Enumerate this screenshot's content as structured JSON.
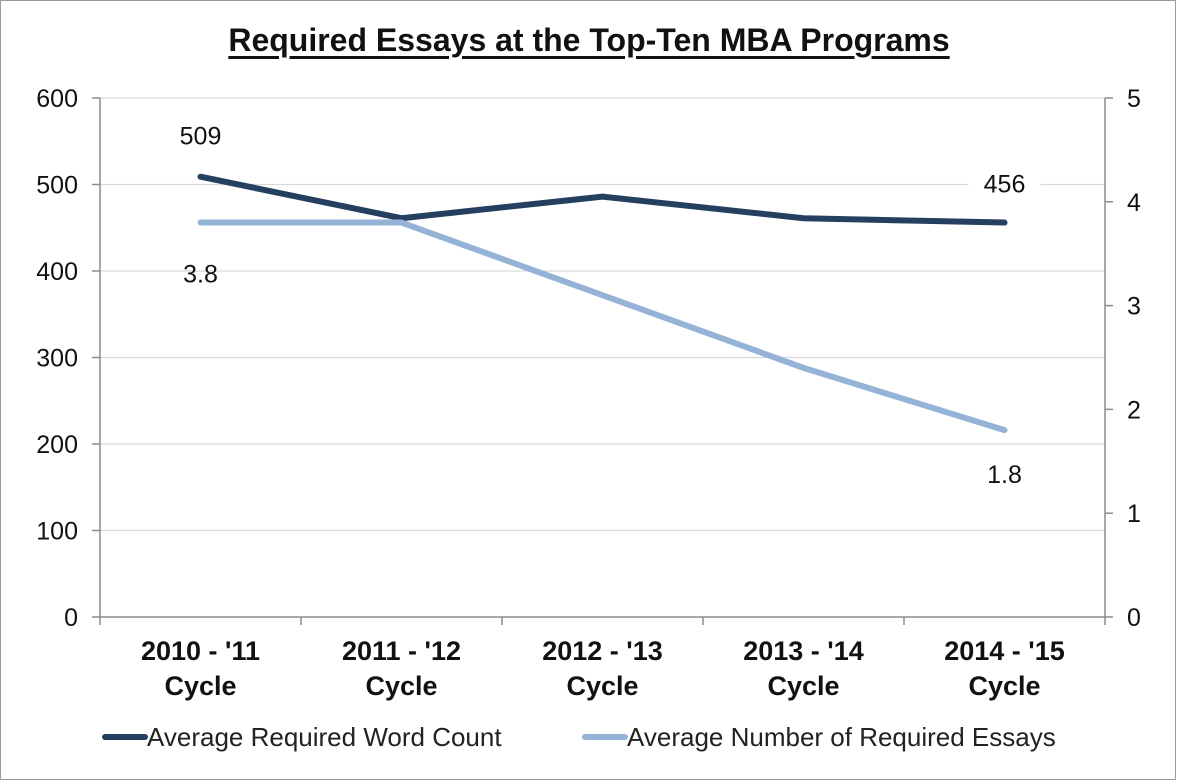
{
  "chart_data": {
    "type": "line",
    "title": "Required Essays at the Top-Ten MBA Programs",
    "categories": [
      [
        "2010 - '11",
        "Cycle"
      ],
      [
        "2011 - '12",
        "Cycle"
      ],
      [
        "2012 - '13",
        "Cycle"
      ],
      [
        "2013 - '14",
        "Cycle"
      ],
      [
        "2014 - '15",
        "Cycle"
      ]
    ],
    "y_left": {
      "min": 0,
      "max": 600,
      "ticks": [
        "0",
        "100",
        "200",
        "300",
        "400",
        "500",
        "600"
      ]
    },
    "y_right": {
      "min": 0,
      "max": 5,
      "ticks": [
        "0",
        "1",
        "2",
        "3",
        "4",
        "5"
      ]
    },
    "grid": true,
    "legend_position": "bottom",
    "series": [
      {
        "name": "Average Required Word Count",
        "axis": "left",
        "color": "#243f60",
        "values": [
          509,
          461,
          486,
          461,
          456
        ],
        "labels": [
          {
            "index": 0,
            "text": "509"
          },
          {
            "index": 4,
            "text": "456"
          }
        ]
      },
      {
        "name": "Average Number of Required Essays",
        "axis": "right",
        "color": "#95b3d7",
        "values": [
          3.8,
          3.8,
          3.1,
          2.4,
          1.8
        ],
        "labels": [
          {
            "index": 0,
            "text": "3.8"
          },
          {
            "index": 4,
            "text": "1.8"
          }
        ]
      }
    ]
  }
}
